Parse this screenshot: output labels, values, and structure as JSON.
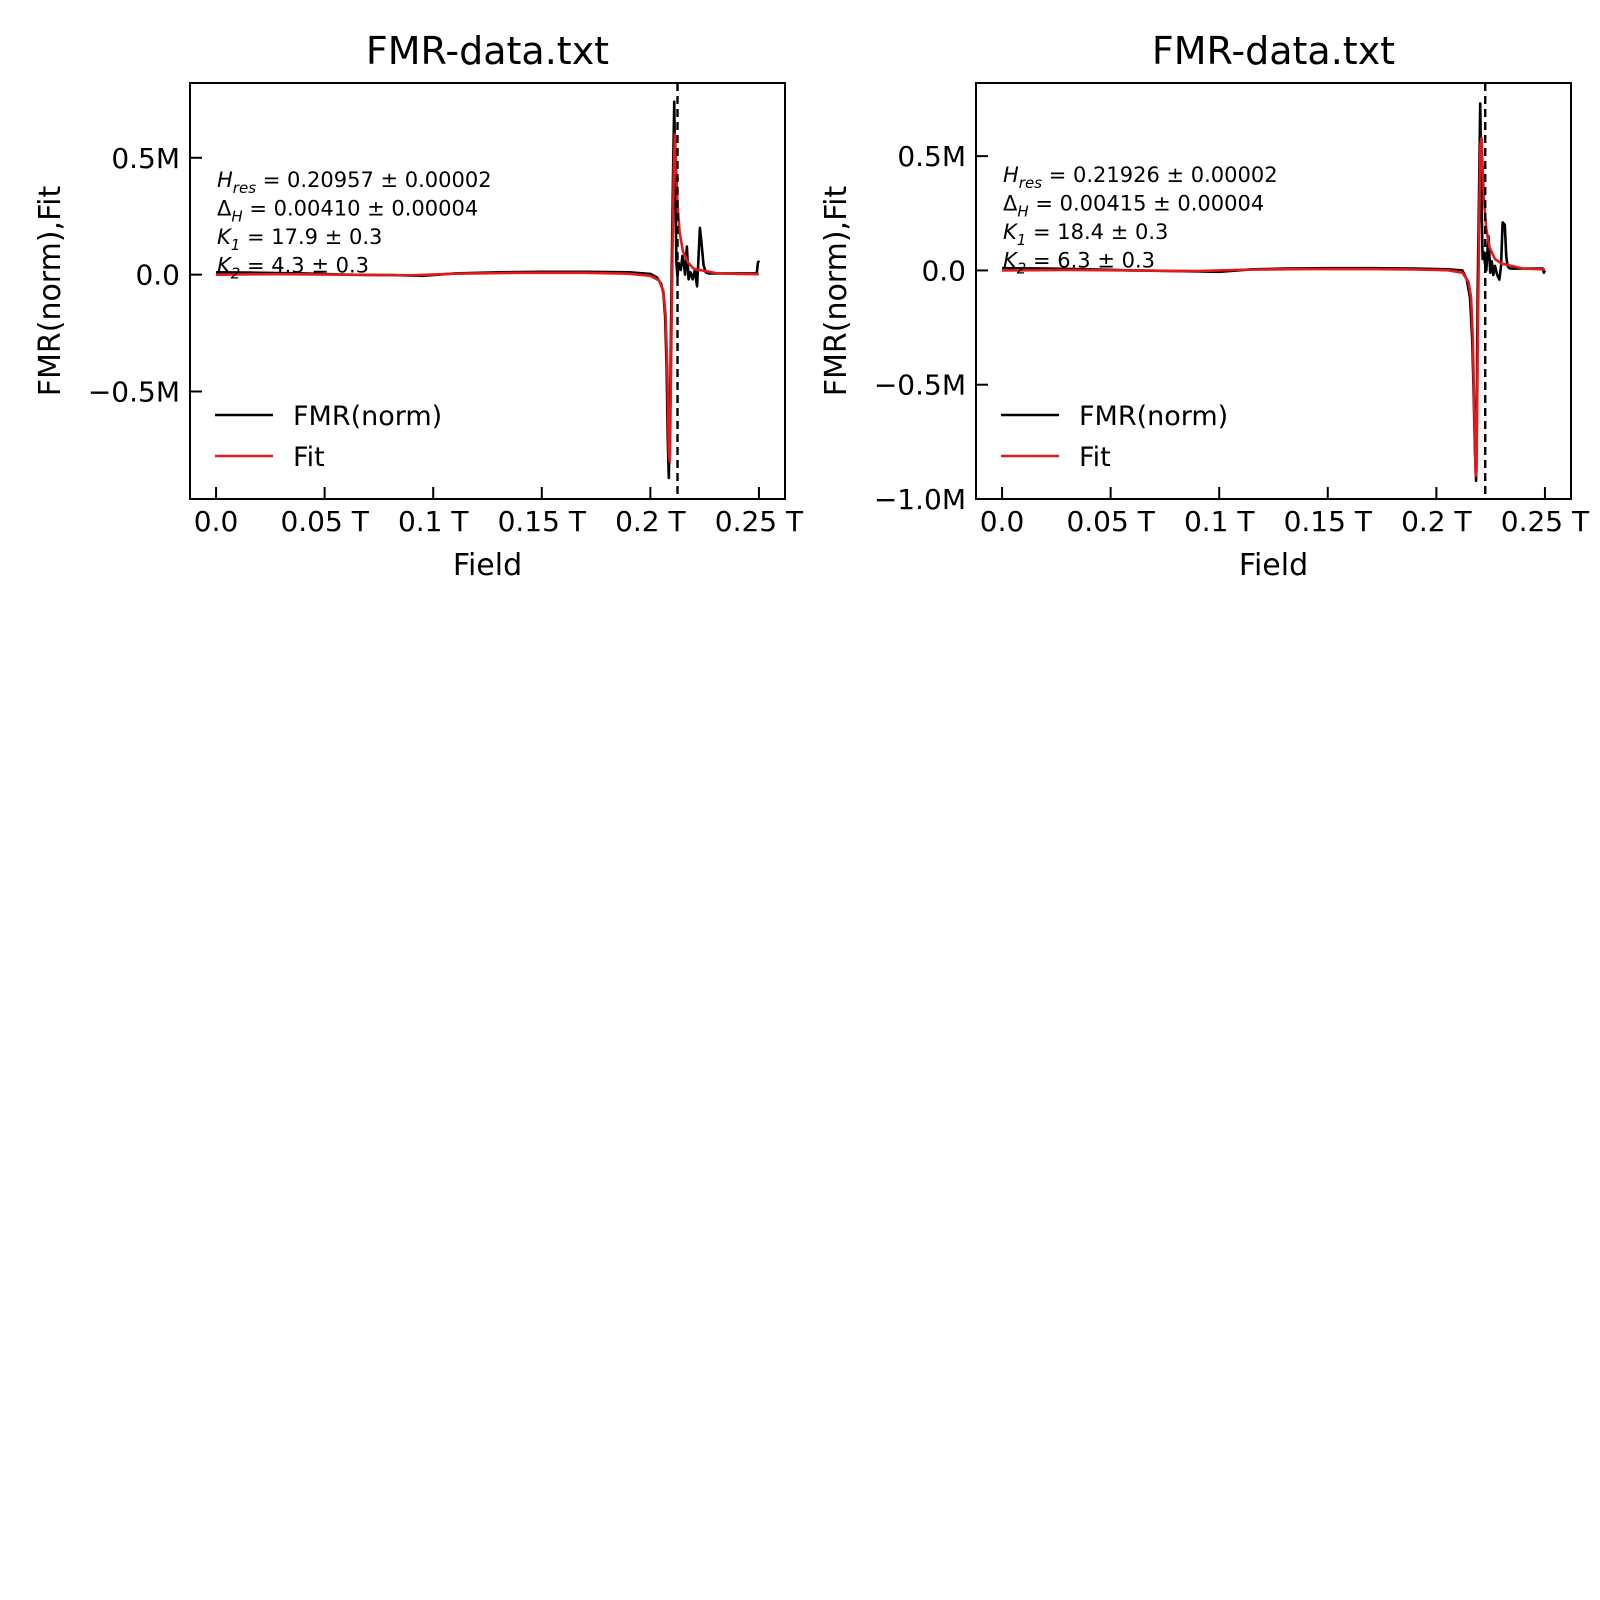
{
  "chart_data": [
    {
      "type": "line",
      "title": "FMR-data.txt",
      "xlabel": "Field",
      "ylabel": "FMR(norm),Fit",
      "xlim": [
        -0.012,
        0.262
      ],
      "ylim": [
        -0.96,
        0.82
      ],
      "xticks": [
        0.0,
        0.05,
        0.1,
        0.15,
        0.2,
        0.25
      ],
      "xtick_labels": [
        "0.0",
        "0.05 T",
        "0.1 T",
        "0.15 T",
        "0.2 T",
        "0.25 T"
      ],
      "yticks": [
        0.5,
        0.0,
        -0.5
      ],
      "ytick_labels": [
        "0.5M",
        "0.0",
        "−0.5M"
      ],
      "y_unit_note": "M = 10^6",
      "vline_x": 0.2125,
      "legend": {
        "placement": "lower-left",
        "entries": [
          "FMR(norm)",
          "Fit"
        ]
      },
      "annotation": [
        {
          "sym": "H",
          "sub": "res",
          "text": " = 0.20957 ± 0.00002"
        },
        {
          "sym": "Δ",
          "sub": "H",
          "text": " = 0.00410 ± 0.00004"
        },
        {
          "sym": "K",
          "sub": "1",
          "text": " = 17.9 ± 0.3"
        },
        {
          "sym": "K",
          "sub": "2",
          "text": " = 4.3 ± 0.3"
        }
      ],
      "series": [
        {
          "name": "FMR(norm)",
          "color": "#000000",
          "x": [
            0.0,
            0.02,
            0.04,
            0.06,
            0.08,
            0.095,
            0.11,
            0.13,
            0.15,
            0.17,
            0.19,
            0.2,
            0.203,
            0.205,
            0.206,
            0.2068,
            0.2075,
            0.208,
            0.2085,
            0.2092,
            0.2098,
            0.2104,
            0.211,
            0.2116,
            0.212,
            0.2125,
            0.213,
            0.214,
            0.2148,
            0.2155,
            0.216,
            0.2168,
            0.2176,
            0.2185,
            0.2195,
            0.2205,
            0.2215,
            0.222,
            0.2228,
            0.2235,
            0.2245,
            0.2255,
            0.227,
            0.23,
            0.24,
            0.249,
            0.2495,
            0.25
          ],
          "y": [
            0.01,
            0.008,
            0.005,
            0.0,
            -0.002,
            -0.005,
            0.005,
            0.01,
            0.012,
            0.012,
            0.01,
            0.003,
            -0.012,
            -0.04,
            -0.08,
            -0.18,
            -0.4,
            -0.7,
            -0.87,
            -0.5,
            0.0,
            0.4,
            0.74,
            0.3,
            0.05,
            -0.01,
            0.05,
            0.02,
            0.08,
            0.04,
            0.0,
            0.12,
            -0.02,
            0.01,
            -0.02,
            0.02,
            -0.05,
            0.04,
            0.2,
            0.14,
            0.04,
            0.01,
            0.005,
            0.005,
            0.005,
            0.005,
            0.05,
            0.06
          ]
        },
        {
          "name": "Fit",
          "color": "#e31a1c",
          "x": [
            0.0,
            0.03,
            0.06,
            0.09,
            0.11,
            0.14,
            0.17,
            0.19,
            0.2,
            0.204,
            0.206,
            0.207,
            0.2078,
            0.2085,
            0.209,
            0.2096,
            0.2102,
            0.2108,
            0.2113,
            0.2118,
            0.2125,
            0.2135,
            0.215,
            0.2175,
            0.22,
            0.23,
            0.24,
            0.25
          ],
          "y": [
            0.0,
            0.002,
            0.0,
            -0.003,
            0.004,
            0.008,
            0.008,
            0.004,
            -0.005,
            -0.025,
            -0.07,
            -0.17,
            -0.4,
            -0.76,
            -0.8,
            -0.35,
            0.1,
            0.45,
            0.6,
            0.48,
            0.3,
            0.18,
            0.1,
            0.05,
            0.025,
            0.007,
            0.003,
            0.002
          ]
        }
      ]
    },
    {
      "type": "line",
      "title": "FMR-data.txt",
      "xlabel": "Field",
      "ylabel": "FMR(norm),Fit",
      "xlim": [
        -0.012,
        0.262
      ],
      "ylim": [
        -1.0,
        0.82
      ],
      "xticks": [
        0.0,
        0.05,
        0.1,
        0.15,
        0.2,
        0.25
      ],
      "xtick_labels": [
        "0.0",
        "0.05 T",
        "0.1 T",
        "0.15 T",
        "0.2 T",
        "0.25 T"
      ],
      "yticks": [
        0.5,
        0.0,
        -0.5,
        -1.0
      ],
      "ytick_labels": [
        "0.5M",
        "0.0",
        "−0.5M",
        "−1.0M"
      ],
      "y_unit_note": "M = 10^6",
      "vline_x": 0.2225,
      "legend": {
        "placement": "lower-left",
        "entries": [
          "FMR(norm)",
          "Fit"
        ]
      },
      "annotation": [
        {
          "sym": "H",
          "sub": "res",
          "text": " = 0.21926 ± 0.00002"
        },
        {
          "sym": "Δ",
          "sub": "H",
          "text": " = 0.00415 ± 0.00004"
        },
        {
          "sym": "K",
          "sub": "1",
          "text": " = 18.4 ± 0.3"
        },
        {
          "sym": "K",
          "sub": "2",
          "text": " = 6.3 ± 0.3"
        }
      ],
      "series": [
        {
          "name": "FMR(norm)",
          "color": "#000000",
          "x": [
            0.0,
            0.02,
            0.04,
            0.06,
            0.08,
            0.1,
            0.115,
            0.13,
            0.15,
            0.17,
            0.19,
            0.205,
            0.212,
            0.214,
            0.2155,
            0.2165,
            0.2172,
            0.2178,
            0.2183,
            0.2187,
            0.219,
            0.2196,
            0.2202,
            0.2208,
            0.2213,
            0.2218,
            0.2224,
            0.223,
            0.224,
            0.2248,
            0.2255,
            0.2262,
            0.227,
            0.228,
            0.229,
            0.2298,
            0.2305,
            0.2315,
            0.2322,
            0.2328,
            0.2335,
            0.2345,
            0.236,
            0.24,
            0.249,
            0.2495,
            0.25
          ],
          "y": [
            0.01,
            0.008,
            0.005,
            0.0,
            -0.003,
            -0.006,
            0.005,
            0.008,
            0.01,
            0.01,
            0.008,
            0.005,
            0.0,
            -0.04,
            -0.12,
            -0.3,
            -0.55,
            -0.8,
            -0.92,
            -0.5,
            -0.1,
            0.3,
            0.73,
            0.3,
            0.05,
            0.08,
            0.03,
            0.0,
            0.15,
            -0.01,
            0.04,
            -0.02,
            0.02,
            -0.02,
            -0.04,
            0.02,
            0.21,
            0.2,
            0.06,
            0.02,
            0.01,
            0.008,
            0.008,
            0.008,
            0.008,
            -0.01,
            0.0
          ]
        },
        {
          "name": "Fit",
          "color": "#e31a1c",
          "x": [
            0.0,
            0.03,
            0.06,
            0.09,
            0.11,
            0.14,
            0.17,
            0.19,
            0.205,
            0.212,
            0.2148,
            0.216,
            0.2168,
            0.2175,
            0.2181,
            0.2185,
            0.2191,
            0.2197,
            0.2203,
            0.2208,
            0.2213,
            0.222,
            0.223,
            0.2245,
            0.227,
            0.23,
            0.24,
            0.25
          ],
          "y": [
            0.0,
            0.002,
            0.0,
            -0.003,
            0.003,
            0.006,
            0.006,
            0.004,
            0.001,
            -0.01,
            -0.05,
            -0.12,
            -0.3,
            -0.62,
            -0.9,
            -0.88,
            -0.3,
            0.2,
            0.55,
            0.58,
            0.45,
            0.3,
            0.18,
            0.1,
            0.05,
            0.03,
            0.008,
            0.004
          ]
        }
      ]
    }
  ]
}
